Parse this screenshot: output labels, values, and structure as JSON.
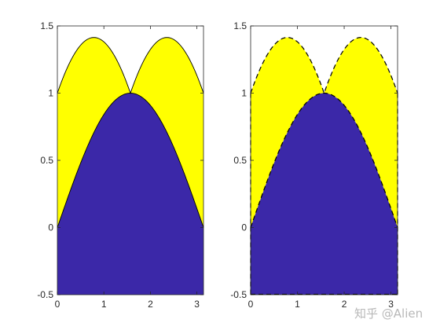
{
  "chart_data": [
    {
      "type": "area",
      "title": "",
      "xlabel": "",
      "ylabel": "",
      "xlim": [
        0,
        3.14159
      ],
      "ylim": [
        -0.5,
        1.5
      ],
      "x_ticks": [
        "0",
        "1",
        "2",
        "3"
      ],
      "y_ticks": [
        "-0.5",
        "0",
        "0.5",
        "1",
        "1.5"
      ],
      "line_style": "solid",
      "grid": false,
      "series": [
        {
          "color": "#3b28a8",
          "x": [
            0,
            0.2618,
            0.5236,
            0.7854,
            1.0472,
            1.309,
            1.5708,
            1.8326,
            2.0944,
            2.3562,
            2.618,
            2.8798,
            3.1416
          ],
          "values": [
            0,
            0.259,
            0.5,
            0.707,
            0.866,
            0.966,
            1.0,
            0.966,
            0.866,
            0.707,
            0.5,
            0.259,
            0
          ]
        },
        {
          "color": "#ffff00",
          "x": [
            0,
            0.2618,
            0.5236,
            0.7854,
            1.0472,
            1.309,
            1.5708,
            1.8326,
            2.0944,
            2.3562,
            2.618,
            2.8798,
            3.1416
          ],
          "values": [
            1.0,
            1.225,
            1.366,
            1.414,
            1.366,
            1.225,
            1.0,
            1.225,
            1.366,
            1.414,
            1.366,
            1.225,
            1.0
          ]
        }
      ]
    },
    {
      "type": "area",
      "title": "",
      "xlabel": "",
      "ylabel": "",
      "xlim": [
        0,
        3.14159
      ],
      "ylim": [
        -0.5,
        1.5
      ],
      "x_ticks": [
        "0",
        "1",
        "2",
        "3"
      ],
      "y_ticks": [
        "-0.5",
        "0",
        "0.5",
        "1",
        "1.5"
      ],
      "line_style": "dashed",
      "grid": false,
      "series": [
        {
          "color": "#3b28a8",
          "x": [
            0,
            0.2618,
            0.5236,
            0.7854,
            1.0472,
            1.309,
            1.5708,
            1.8326,
            2.0944,
            2.3562,
            2.618,
            2.8798,
            3.1416
          ],
          "values": [
            0,
            0.259,
            0.5,
            0.707,
            0.866,
            0.966,
            1.0,
            0.966,
            0.866,
            0.707,
            0.5,
            0.259,
            0
          ]
        },
        {
          "color": "#ffff00",
          "x": [
            0,
            0.2618,
            0.5236,
            0.7854,
            1.0472,
            1.309,
            1.5708,
            1.8326,
            2.0944,
            2.3562,
            2.618,
            2.8798,
            3.1416
          ],
          "values": [
            1.0,
            1.225,
            1.366,
            1.414,
            1.366,
            1.225,
            1.0,
            1.225,
            1.366,
            1.414,
            1.366,
            1.225,
            1.0
          ]
        }
      ]
    }
  ],
  "watermark": "知乎 @Alien"
}
